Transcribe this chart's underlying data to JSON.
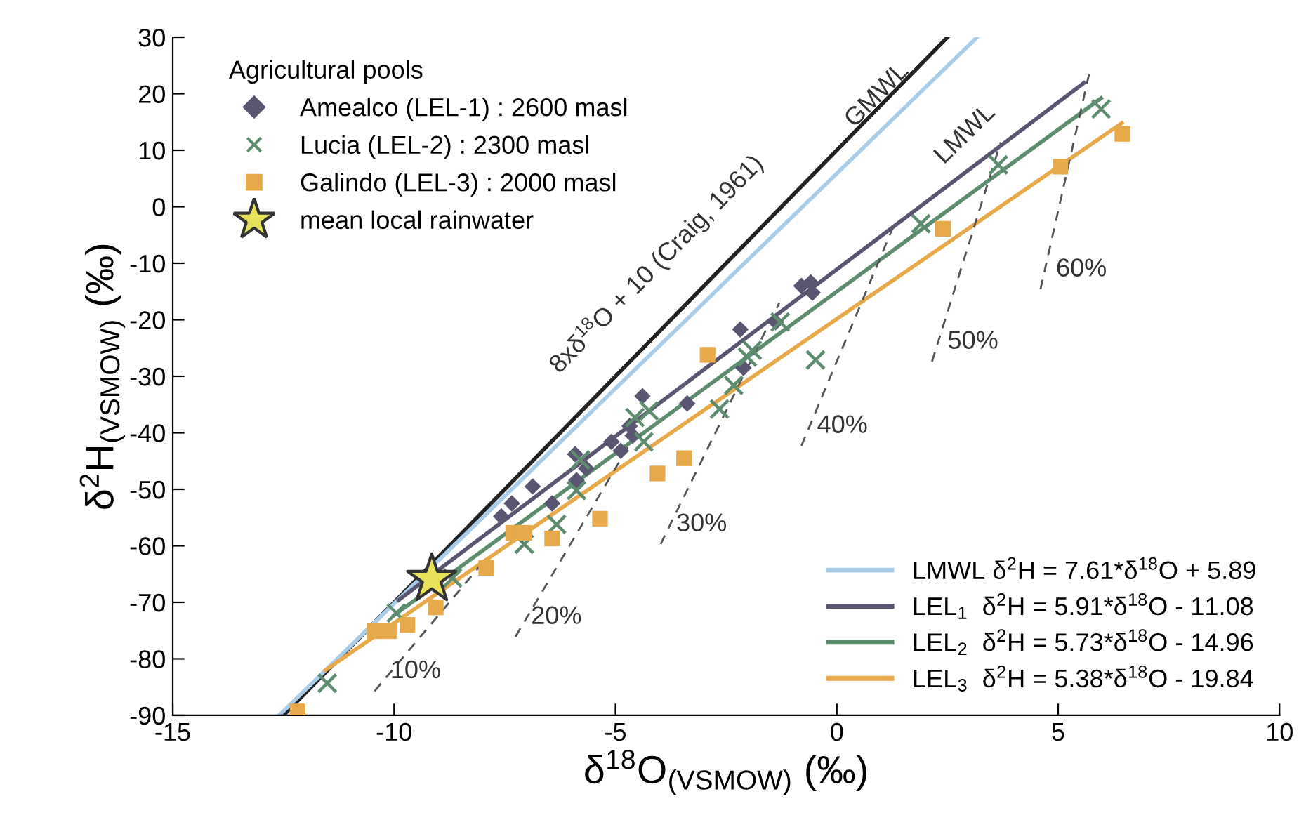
{
  "chart_data": {
    "type": "scatter",
    "xlabel": "δ$^{18}$O$_{(VSMOW)}$ (‰)",
    "ylabel": "δ$^{2}$H$_{(VSMOW)}$ (‰)",
    "xlim": [
      -15,
      10
    ],
    "xticks": [
      -15,
      -10,
      -5,
      0,
      5,
      10
    ],
    "ylim": [
      -90,
      30
    ],
    "yticks": [
      -90,
      -80,
      -70,
      -60,
      -50,
      -40,
      -30,
      -20,
      -10,
      0,
      10,
      20,
      30
    ],
    "grid": false,
    "legend": "bottom right",
    "legend_title": "Agricultural pools",
    "series": [
      {
        "type": "line",
        "name": "GMWL",
        "color": "#222222",
        "x": [
          -12.5,
          2.5
        ],
        "values": [
          -90,
          30
        ]
      },
      {
        "type": "line",
        "name": "LMWL δ$^{2}$H = 7.61*δ$^{18}$O + 5.89",
        "color": "#a9cde8",
        "x": [
          -12.6,
          3.17
        ],
        "values": [
          -90,
          30
        ]
      },
      {
        "type": "line",
        "name": "LEL$_{1}$  δ$^{2}$H = 5.91*δ$^{18}$O - 11.08",
        "color": "#5a5570",
        "x": [
          -9.9,
          5.58
        ],
        "values": [
          -69.6,
          21.9
        ]
      },
      {
        "type": "line",
        "name": "LEL$_{2}$  δ$^{2}$H = 5.73*δ$^{18}$O - 14.96",
        "color": "#5e8c6f",
        "x": [
          -10.0,
          5.97
        ],
        "values": [
          -72.3,
          19.2
        ]
      },
      {
        "type": "line",
        "name": "LEL$_{3}$  δ$^{2}$H = 5.38*δ$^{18}$O - 19.84",
        "color": "#e8a94a",
        "x": [
          -11.55,
          6.44
        ],
        "values": [
          -82.0,
          14.8
        ]
      },
      {
        "type": "line",
        "name": "10%",
        "line_style": "dashed",
        "color": "#555555",
        "x": [
          -10.44,
          -8.0
        ],
        "values": [
          -85.7,
          -63
        ]
      },
      {
        "type": "line",
        "name": "20%",
        "line_style": "dashed",
        "color": "#555555",
        "x": [
          -7.26,
          -4.6
        ],
        "values": [
          -76.1,
          -41
        ]
      },
      {
        "type": "line",
        "name": "30%",
        "line_style": "dashed",
        "color": "#555555",
        "x": [
          -3.98,
          -1.3
        ],
        "values": [
          -59.7,
          -17
        ]
      },
      {
        "type": "line",
        "name": "40%",
        "line_style": "dashed",
        "color": "#555555",
        "x": [
          -0.8,
          1.33
        ],
        "values": [
          -42.3,
          -2.5
        ]
      },
      {
        "type": "line",
        "name": "50%",
        "line_style": "dashed",
        "color": "#555555",
        "x": [
          2.15,
          3.7
        ],
        "values": [
          -27.4,
          11.4
        ]
      },
      {
        "type": "line",
        "name": "60%",
        "line_style": "dashed",
        "color": "#555555",
        "x": [
          4.6,
          5.71
        ],
        "values": [
          -14.6,
          23.9
        ]
      },
      {
        "name": "Amealco (LEL-1) : 2600 masl",
        "marker": "diamond",
        "color": "#5a5570",
        "x": [
          -7.58,
          -7.34,
          -6.87,
          -6.43,
          -5.91,
          -5.88,
          -5.66,
          -5.09,
          -4.88,
          -4.68,
          -4.61,
          -4.39,
          -3.38,
          -2.18,
          -2.11,
          -1.38,
          -0.8,
          -0.59,
          -0.55
        ],
        "values": [
          -54.8,
          -52.5,
          -49.5,
          -52.5,
          -43.8,
          -48.4,
          -46.3,
          -41.6,
          -43.2,
          -38.8,
          -40.5,
          -33.5,
          -34.8,
          -21.7,
          -28.5,
          -20.4,
          -14.0,
          -13.4,
          -15.2
        ]
      },
      {
        "name": "Lucia (LEL-2) : 2300 masl",
        "marker": "cross",
        "color": "#5e8c6f",
        "x": [
          -11.51,
          -9.95,
          -8.68,
          -8.01,
          -7.06,
          -6.33,
          -5.88,
          -5.79,
          -4.56,
          -4.24,
          -4.36,
          -2.65,
          -2.33,
          -2.02,
          -1.91,
          -1.28,
          -0.48,
          1.9,
          3.65,
          5.97
        ],
        "values": [
          -84.3,
          -71.9,
          -65.7,
          null,
          -59.7,
          -56.2,
          -50.2,
          -44.8,
          -37.3,
          -36.1,
          -41.6,
          -35.8,
          -31.6,
          -26.6,
          -25.4,
          -20.4,
          -27.1,
          -3.0,
          7.4,
          17.3
        ]
      },
      {
        "name": "Galindo (LEL-3) : 2000 masl",
        "marker": "square",
        "color": "#e8a94a",
        "x": [
          -12.18,
          -10.44,
          -10.12,
          -9.7,
          -9.06,
          -7.92,
          -7.31,
          -7.06,
          -6.43,
          -5.35,
          -4.05,
          -3.45,
          -2.92,
          2.4,
          5.05,
          6.45
        ],
        "values": [
          -89.3,
          -75.1,
          -75.1,
          -74.0,
          -70.9,
          -63.9,
          -57.7,
          -57.7,
          -58.7,
          -55.2,
          -47.2,
          -44.5,
          -26.2,
          -3.9,
          7.1,
          12.9
        ]
      },
      {
        "name": "mean local rainwater",
        "marker": "star",
        "color": "#e8e25a",
        "x": [
          -9.15
        ],
        "values": [
          -65.9
        ]
      }
    ],
    "annotations": [
      "8xδ$^{18}$O + 10 (Craig, 1961)",
      "LMWL"
    ]
  }
}
